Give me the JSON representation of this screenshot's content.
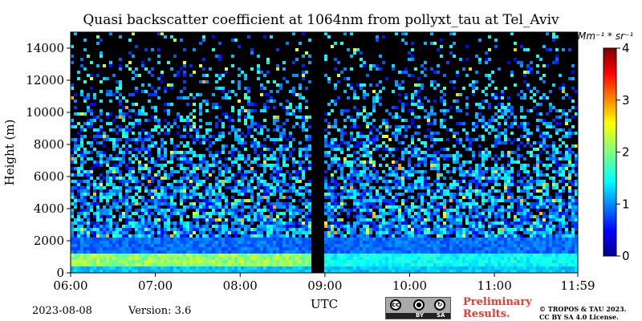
{
  "chart_data": {
    "type": "heatmap",
    "title": "Quasi backscatter coefficient at 1064nm from pollyxt_tau at Tel_Aviv",
    "xlabel": "UTC",
    "ylabel": "Height (m)",
    "x_ticks": [
      "06:00",
      "07:00",
      "08:00",
      "09:00",
      "10:00",
      "11:00",
      "11:59"
    ],
    "x_range": [
      "06:00",
      "11:59"
    ],
    "y_ticks": [
      0,
      2000,
      4000,
      6000,
      8000,
      10000,
      12000,
      14000
    ],
    "ylim": [
      0,
      15000
    ],
    "colorbar": {
      "ticks": [
        0,
        1,
        2,
        3,
        4
      ],
      "range": [
        0,
        4
      ],
      "unit": "Mm⁻¹ * sr⁻¹",
      "colormap": "jet"
    },
    "data_gap": [
      "08:50",
      "09:00"
    ],
    "features": {
      "boundary_layer_top_m": 1200,
      "elevated_layer_base_m": 500,
      "elevated_layer_top_m": 1200
    }
  },
  "footer": {
    "date": "2023-08-08",
    "version": "Version: 3.6",
    "preliminary_line1": "Preliminary",
    "preliminary_line2": "Results.",
    "copyright_line1": "© TROPOS & TAU 2023.",
    "copyright_line2": "CC BY SA 4.0 License.",
    "cc_badge": {
      "by_label": "BY",
      "sa_label": "SA",
      "cc": "cc"
    }
  }
}
